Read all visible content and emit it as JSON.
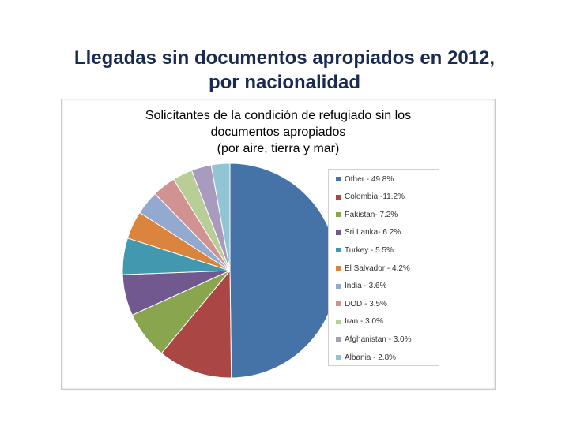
{
  "slide": {
    "title_line1": "Llegadas sin documentos apropiados en 2012,",
    "title_line2": "por nacionalidad"
  },
  "chart_data": {
    "type": "pie",
    "title_lines": [
      "Solicitantes de la condición de refugiado sin los",
      "documentos apropiados",
      "(por aire, tierra y mar)"
    ],
    "legend_position": "right",
    "slices": [
      {
        "label": "Other - 49.8%",
        "value": 49.8,
        "color": "#4572a7"
      },
      {
        "label": "Colombia -11.2%",
        "value": 11.2,
        "color": "#aa4643"
      },
      {
        "label": "Pakistan- 7.2%",
        "value": 7.2,
        "color": "#89a54e"
      },
      {
        "label": "Sri Lanka- 6.2%",
        "value": 6.2,
        "color": "#71588f"
      },
      {
        "label": "Turkey - 5.5%",
        "value": 5.5,
        "color": "#4198af"
      },
      {
        "label": "El Salvador - 4.2%",
        "value": 4.2,
        "color": "#db843d"
      },
      {
        "label": "India - 3.6%",
        "value": 3.6,
        "color": "#93a9cf"
      },
      {
        "label": "DOD - 3.5%",
        "value": 3.5,
        "color": "#d19392"
      },
      {
        "label": "Iran - 3.0%",
        "value": 3.0,
        "color": "#b9cd96"
      },
      {
        "label": "Afghanistan - 3.0%",
        "value": 3.0,
        "color": "#a99bbd"
      },
      {
        "label": "Albania - 2.8%",
        "value": 2.8,
        "color": "#92c5d4"
      }
    ]
  }
}
